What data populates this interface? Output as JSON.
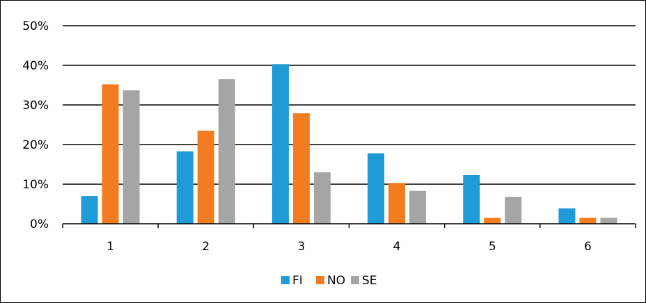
{
  "chart_data": {
    "type": "bar",
    "title": "",
    "xlabel": "",
    "ylabel": "",
    "categories": [
      "1",
      "2",
      "3",
      "4",
      "5",
      "6"
    ],
    "series": [
      {
        "name": "FI",
        "color": "#1f9bd7",
        "values": [
          7,
          18.3,
          40.3,
          17.8,
          12.3,
          3.9
        ]
      },
      {
        "name": "NO",
        "color": "#f47c20",
        "values": [
          35.2,
          23.5,
          27.9,
          10.3,
          1.5,
          1.5
        ]
      },
      {
        "name": "SE",
        "color": "#a5a5a5",
        "values": [
          33.7,
          36.5,
          13,
          8.3,
          6.8,
          1.5
        ]
      }
    ],
    "ylim": [
      0,
      50
    ],
    "yticks": [
      "0%",
      "10%",
      "20%",
      "30%",
      "40%",
      "50%"
    ],
    "grid": true,
    "legend_position": "bottom"
  }
}
